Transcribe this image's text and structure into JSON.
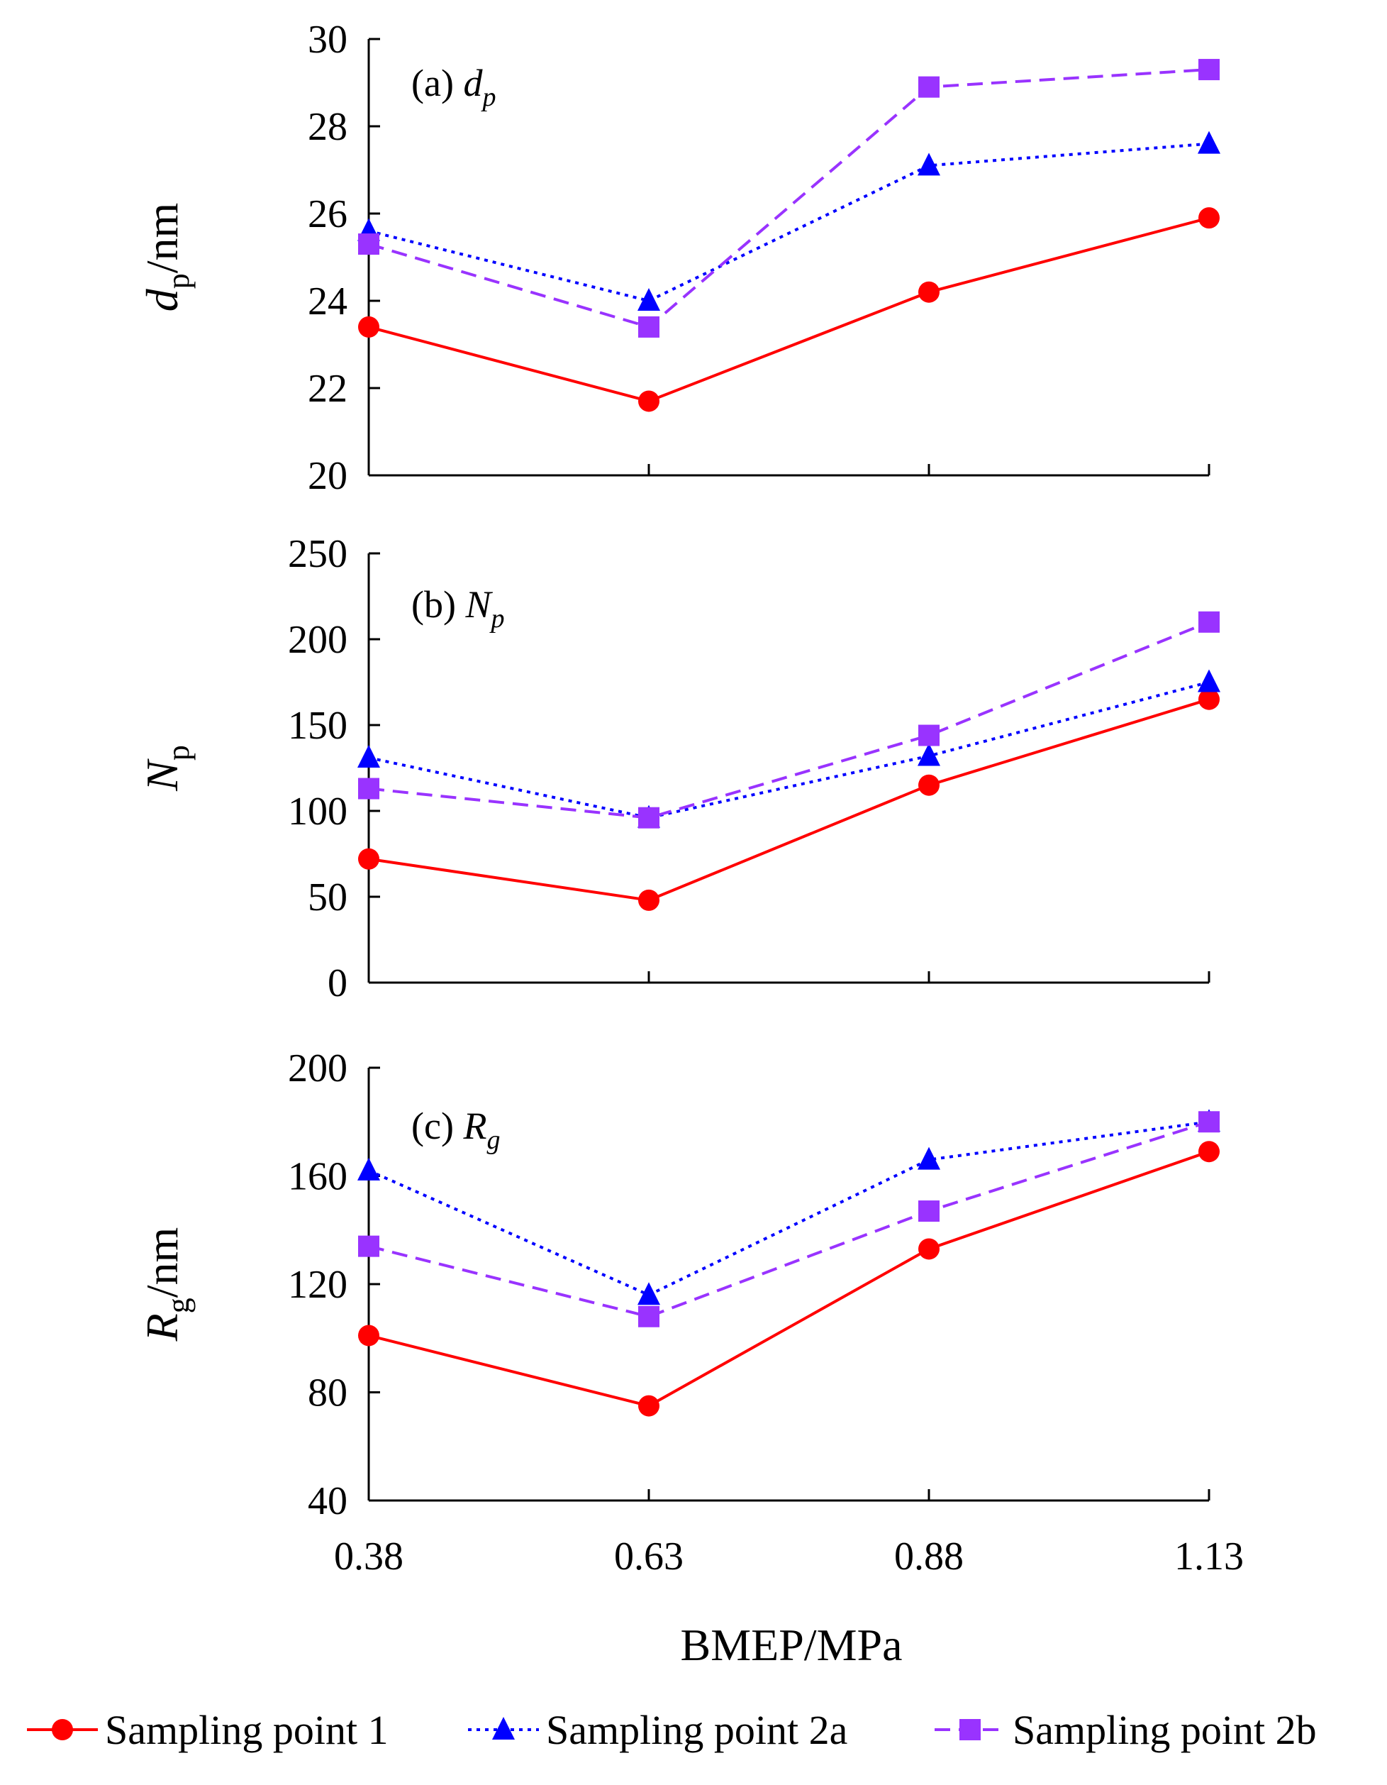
{
  "chart_data": {
    "type": "line",
    "x": [
      0.38,
      0.63,
      0.88,
      1.13
    ],
    "x_tick_labels": [
      "0.38",
      "0.63",
      "0.88",
      "1.13"
    ],
    "xlabel": "BMEP/MPa",
    "legend": [
      {
        "name": "Sampling point 1",
        "color": "#ff0000",
        "style": "solid",
        "marker": "circle"
      },
      {
        "name": "Sampling point 2a",
        "color": "#0000ff",
        "style": "dotted",
        "marker": "triangle"
      },
      {
        "name": "Sampling point 2b",
        "color": "#9933ff",
        "style": "dashed",
        "marker": "square"
      }
    ],
    "panels": [
      {
        "label": "(a)",
        "label_var": "d",
        "label_sub": "p",
        "ylabel_main": "d",
        "ylabel_sub": "p",
        "ylabel_suffix": "/nm",
        "ylim": [
          20,
          30
        ],
        "yticks": [
          "20",
          "22",
          "24",
          "26",
          "28",
          "30"
        ],
        "series": [
          {
            "name": "Sampling point 1",
            "values": [
              23.4,
              21.7,
              24.2,
              25.9
            ]
          },
          {
            "name": "Sampling point 2a",
            "values": [
              25.6,
              24.0,
              27.1,
              27.6
            ]
          },
          {
            "name": "Sampling point 2b",
            "values": [
              25.3,
              23.4,
              28.9,
              29.3
            ]
          }
        ]
      },
      {
        "label": "(b)",
        "label_var": "N",
        "label_sub": "p",
        "ylabel_main": "N",
        "ylabel_sub": "p",
        "ylabel_suffix": "",
        "ylim": [
          0,
          250
        ],
        "yticks": [
          "0",
          "50",
          "100",
          "150",
          "200",
          "250"
        ],
        "series": [
          {
            "name": "Sampling point 1",
            "values": [
              72,
              48,
              115,
              165
            ]
          },
          {
            "name": "Sampling point 2a",
            "values": [
              131,
              96,
              132,
              175
            ]
          },
          {
            "name": "Sampling point 2b",
            "values": [
              113,
              96,
              144,
              210
            ]
          }
        ]
      },
      {
        "label": "(c)",
        "label_var": "R",
        "label_sub": "g",
        "ylabel_main": "R",
        "ylabel_sub": "g",
        "ylabel_suffix": "/nm",
        "ylim": [
          40,
          200
        ],
        "yticks": [
          "40",
          "80",
          "120",
          "160",
          "200"
        ],
        "series": [
          {
            "name": "Sampling point 1",
            "values": [
              101,
              75,
              133,
              169
            ]
          },
          {
            "name": "Sampling point 2a",
            "values": [
              162,
              116,
              166,
              180
            ]
          },
          {
            "name": "Sampling point 2b",
            "values": [
              134,
              108,
              147,
              180
            ]
          }
        ]
      }
    ]
  }
}
